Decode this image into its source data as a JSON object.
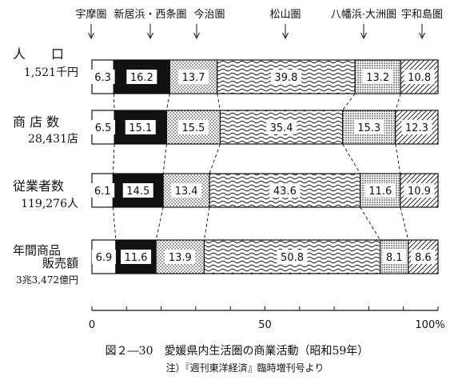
{
  "chart_data": {
    "type": "bar",
    "orientation": "horizontal",
    "stacked": true,
    "series": [
      {
        "name": "宇摩圏",
        "label": "宇摩圏",
        "values": [
          6.3,
          6.5,
          6.1,
          6.9
        ]
      },
      {
        "name": "新居浜・西条圏",
        "label": "新居浜・西条圏",
        "values": [
          16.2,
          15.1,
          14.5,
          11.6
        ]
      },
      {
        "name": "今治圏",
        "label": "今治圏",
        "values": [
          13.7,
          15.5,
          13.4,
          13.9
        ]
      },
      {
        "name": "松山圏",
        "label": "松山圏",
        "values": [
          39.8,
          35.4,
          43.6,
          50.8
        ]
      },
      {
        "name": "八幡浜・大洲圏",
        "label": "八幡浜·大洲圏",
        "values": [
          13.2,
          15.3,
          11.6,
          8.1
        ]
      },
      {
        "name": "宇和島圏",
        "label": "宇和島圏",
        "values": [
          10.8,
          12.3,
          10.9,
          8.6
        ]
      }
    ],
    "categories": [
      {
        "lines": [
          "人　　口",
          "1,521千円"
        ]
      },
      {
        "lines": [
          "商 店 数",
          "28,431店"
        ]
      },
      {
        "lines": [
          "従業者数",
          "119,276人"
        ]
      },
      {
        "lines": [
          "年間商品",
          "販売額",
          "3兆3,472億円"
        ]
      }
    ],
    "xticks": [
      "0",
      "50",
      "100%"
    ],
    "xlim": [
      0,
      100
    ],
    "caption": "図２―30　愛媛県内生活圏の商業活動（昭和59年）",
    "note": "注）『週刊東洋経済』臨時増刊号より",
    "colors": {
      "ink": "#111111",
      "background": "#ffffff"
    }
  }
}
